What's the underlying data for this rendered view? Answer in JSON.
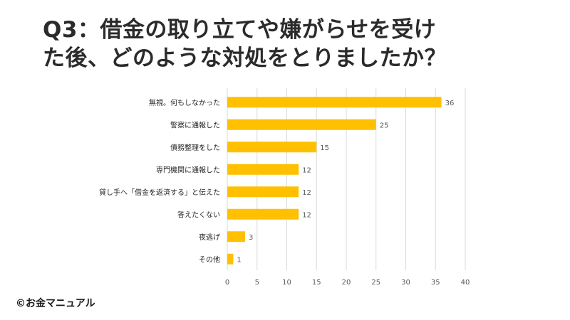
{
  "title_lines": [
    "Q3：借金の取り立てや嫌がらせを受け",
    "た後、どのような対処をとりましたか？"
  ],
  "credit": "©お金マニュアル",
  "chart_data": {
    "type": "bar",
    "orientation": "horizontal",
    "categories": [
      "無視。何もしなかった",
      "警察に通報した",
      "債務整理をした",
      "専門機関に通報した",
      "貸し手へ「借金を返済する」と伝えた",
      "答えたくない",
      "夜逃げ",
      "その他"
    ],
    "values": [
      36,
      25,
      15,
      12,
      12,
      12,
      3,
      1
    ],
    "xlim": [
      0,
      40
    ],
    "xticks": [
      0,
      5,
      10,
      15,
      20,
      25,
      30,
      35,
      40
    ],
    "grid": true,
    "bar_color": "#FFC000",
    "data_labels": true
  }
}
